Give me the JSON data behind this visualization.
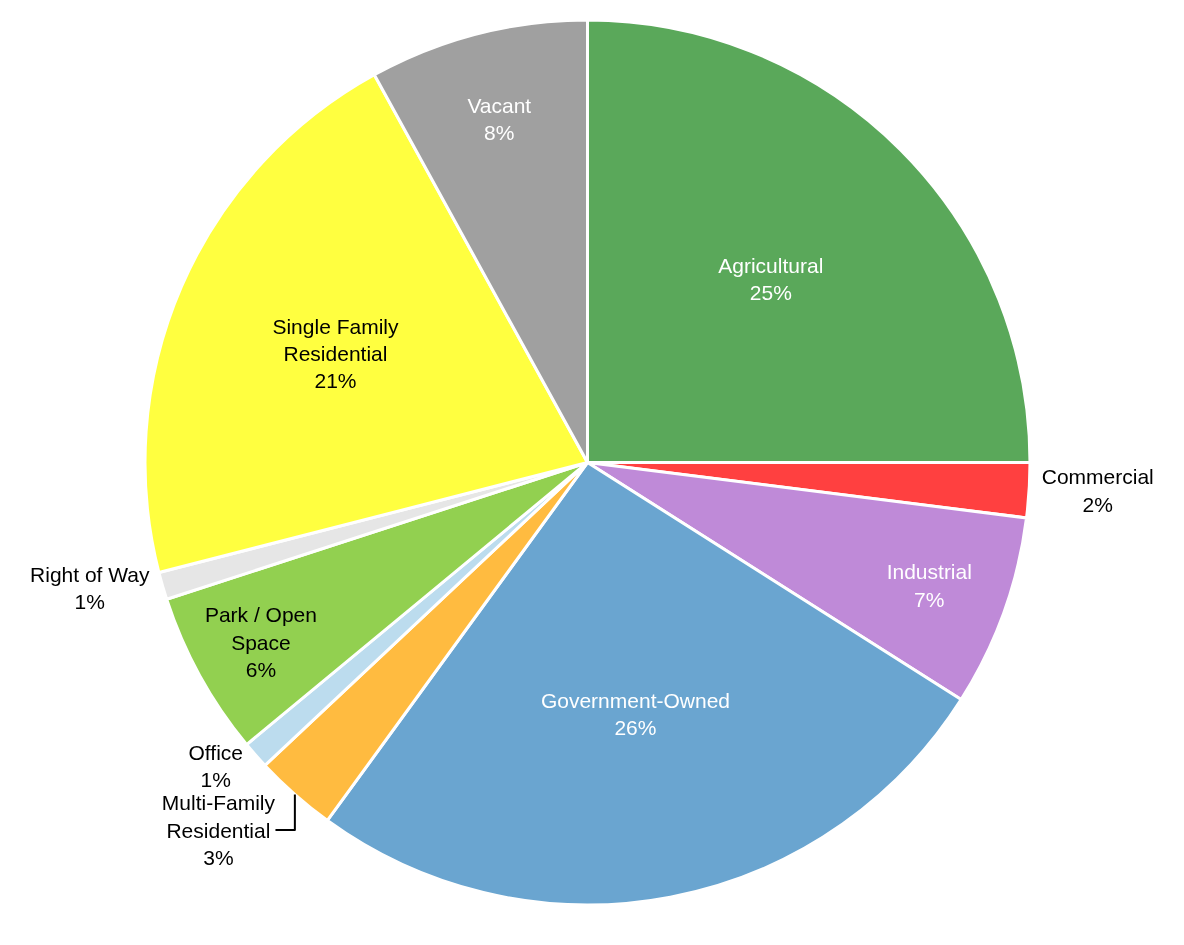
{
  "chart_data": {
    "type": "pie",
    "categories": [
      "Agricultural",
      "Commercial",
      "Industrial",
      "Government-Owned",
      "Multi-Family Residential",
      "Office",
      "Park / Open Space",
      "Right of Way",
      "Single Family Residential",
      "Vacant"
    ],
    "values": [
      25,
      2,
      7,
      26,
      3,
      1,
      6,
      1,
      21,
      8
    ],
    "value_labels": [
      "25%",
      "2%",
      "7%",
      "26%",
      "3%",
      "1%",
      "6%",
      "1%",
      "21%",
      "8%"
    ],
    "colors": [
      "#5aa85a",
      "#ff4040",
      "#bf8ad8",
      "#6aa5d0",
      "#ffbb40",
      "#bcdcee",
      "#92d050",
      "#e6e6e6",
      "#ffff40",
      "#a0a0a0"
    ],
    "legend": false
  }
}
